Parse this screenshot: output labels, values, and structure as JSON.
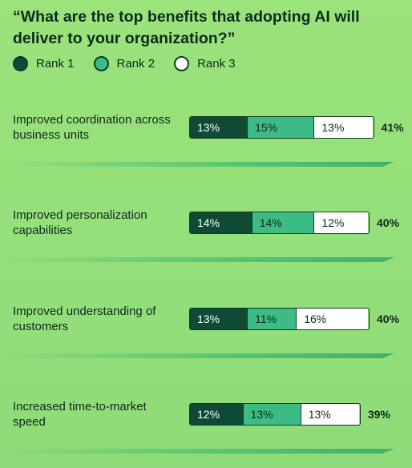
{
  "title": "“What are the top benefits that adopting AI will deliver to your organization?”",
  "legend": [
    {
      "label": "Rank 1",
      "color": "#0f4a35"
    },
    {
      "label": "Rank 2",
      "color": "#3dbb84"
    },
    {
      "label": "Rank 3",
      "color": "#ffffff"
    }
  ],
  "chart_data": {
    "type": "bar",
    "orientation": "horizontal",
    "stacked": true,
    "title": "“What are the top benefits that adopting AI will deliver to your organization?”",
    "categories": [
      "Improved coordination across business units",
      "Improved personalization capabilities",
      "Improved understanding of customers",
      "Increased time-to-market speed"
    ],
    "series": [
      {
        "name": "Rank 1",
        "values": [
          13,
          14,
          13,
          12
        ],
        "labels": [
          "13%",
          "14%",
          "13%",
          "12%"
        ]
      },
      {
        "name": "Rank 2",
        "values": [
          15,
          14,
          11,
          13
        ],
        "labels": [
          "15%",
          "14%",
          "11%",
          "13%"
        ]
      },
      {
        "name": "Rank 3",
        "values": [
          13,
          12,
          16,
          13
        ],
        "labels": [
          "13%",
          "12%",
          "16%",
          "13%"
        ]
      }
    ],
    "totals": [
      "41%",
      "40%",
      "40%",
      "39%"
    ],
    "legend_position": "top-left",
    "grid": false
  }
}
